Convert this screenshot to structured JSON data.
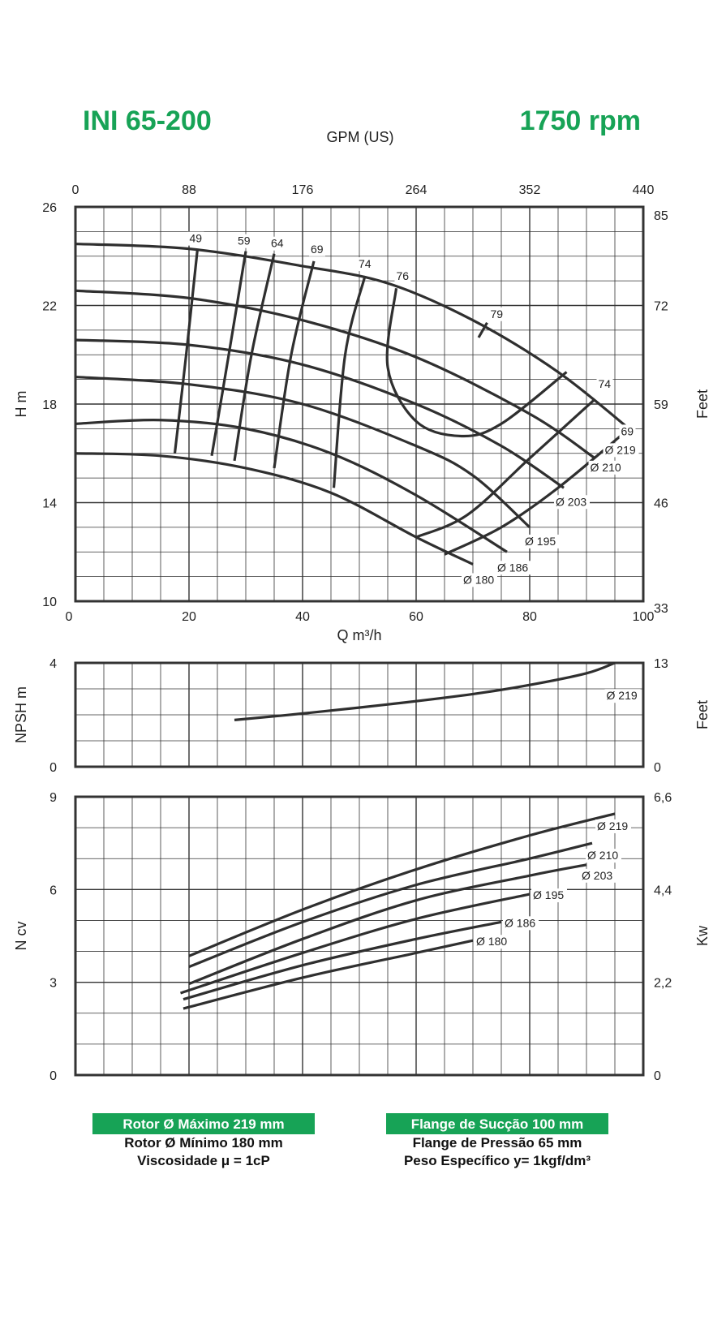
{
  "header": {
    "model": "INI 65-200",
    "speed": "1750 rpm",
    "gpm_label": "GPM (US)"
  },
  "chart_data": [
    {
      "type": "line",
      "name_id": "head",
      "x_top_ticks": [
        "0",
        "88",
        "176",
        "264",
        "352",
        "440"
      ],
      "x_bottom_ticks": [
        "0",
        "20",
        "40",
        "60",
        "80",
        "100"
      ],
      "xlabel": "Q m³/h",
      "ylabel": "H m",
      "y2label": "Feet",
      "xlim": [
        0,
        100
      ],
      "ylim": [
        10,
        26
      ],
      "y_ticks": [
        "10",
        "14",
        "18",
        "22",
        "26"
      ],
      "y2_ticks": [
        "33",
        "46",
        "59",
        "72",
        "85"
      ],
      "impellers": [
        {
          "label": "Ø 219",
          "points": [
            [
              0,
              24.5
            ],
            [
              20,
              24.3
            ],
            [
              40,
              23.6
            ],
            [
              55,
              22.9
            ],
            [
              70,
              21.4
            ],
            [
              85,
              19.3
            ],
            [
              97.5,
              17.0
            ]
          ]
        },
        {
          "label": "Ø 210",
          "points": [
            [
              0,
              22.6
            ],
            [
              20,
              22.3
            ],
            [
              40,
              21.4
            ],
            [
              60,
              19.9
            ],
            [
              80,
              17.6
            ],
            [
              91.5,
              15.8
            ]
          ]
        },
        {
          "label": "Ø 203",
          "points": [
            [
              0,
              20.6
            ],
            [
              20,
              20.4
            ],
            [
              40,
              19.6
            ],
            [
              60,
              18.0
            ],
            [
              75,
              16.3
            ],
            [
              86,
              14.6
            ]
          ]
        },
        {
          "label": "Ø 195",
          "points": [
            [
              0,
              19.1
            ],
            [
              20,
              18.8
            ],
            [
              40,
              18.0
            ],
            [
              60,
              16.3
            ],
            [
              70,
              15.1
            ],
            [
              80,
              13.0
            ]
          ]
        },
        {
          "label": "Ø 186",
          "points": [
            [
              0,
              17.2
            ],
            [
              15,
              17.35
            ],
            [
              30,
              17.0
            ],
            [
              45,
              16.0
            ],
            [
              60,
              14.3
            ],
            [
              76,
              12.0
            ]
          ]
        },
        {
          "label": "Ø 180",
          "points": [
            [
              0,
              16.0
            ],
            [
              15,
              15.9
            ],
            [
              30,
              15.4
            ],
            [
              45,
              14.4
            ],
            [
              60,
              12.6
            ],
            [
              70,
              11.5
            ]
          ]
        }
      ],
      "efficiency_lines": [
        {
          "label": "49",
          "points": [
            [
              21.5,
              24.3
            ],
            [
              19.5,
              20.0
            ],
            [
              17.5,
              16.0
            ]
          ]
        },
        {
          "label": "59",
          "points": [
            [
              30,
              24.2
            ],
            [
              27,
              20.0
            ],
            [
              24,
              15.9
            ]
          ]
        },
        {
          "label": "64",
          "points": [
            [
              35,
              24.1
            ],
            [
              31,
              20.0
            ],
            [
              28,
              15.7
            ]
          ]
        },
        {
          "label": "69",
          "points": [
            [
              42,
              23.8
            ],
            [
              38,
              20.0
            ],
            [
              35,
              15.4
            ]
          ]
        },
        {
          "label": "74",
          "points": [
            [
              51,
              23.2
            ],
            [
              47.5,
              20.0
            ],
            [
              45.5,
              14.6
            ]
          ]
        },
        {
          "label": "76",
          "points": [
            [
              56.5,
              22.7
            ],
            [
              55,
              19.5
            ],
            [
              60,
              17.3
            ],
            [
              68,
              16.7
            ],
            [
              75,
              17.2
            ],
            [
              86.5,
              19.3
            ]
          ]
        },
        {
          "label": "79",
          "points": [
            [
              72.5,
              21.3
            ],
            [
              71,
              20.7
            ]
          ]
        },
        {
          "label": "74",
          "points": [
            [
              91.5,
              18.2
            ],
            [
              80,
              15.8
            ],
            [
              69,
              13.5
            ],
            [
              60,
              12.6
            ]
          ]
        },
        {
          "label": "69",
          "points": [
            [
              97.5,
              17.0
            ],
            [
              85,
              14.6
            ],
            [
              75,
              13.0
            ],
            [
              65,
              11.9
            ]
          ]
        }
      ],
      "eff_label_positions": "top of each line",
      "grid": true
    },
    {
      "type": "line",
      "name_id": "npsh",
      "ylabel": "NPSH m",
      "y2label": "Feet",
      "ylim": [
        0,
        4
      ],
      "y_ticks": [
        "0",
        "4"
      ],
      "y2_ticks": [
        "0",
        "13"
      ],
      "series": [
        {
          "label": "Ø 219",
          "points": [
            [
              28,
              1.8
            ],
            [
              40,
              2.05
            ],
            [
              55,
              2.4
            ],
            [
              70,
              2.8
            ],
            [
              80,
              3.15
            ],
            [
              90,
              3.6
            ],
            [
              95,
              4.0
            ]
          ]
        }
      ],
      "grid": true
    },
    {
      "type": "line",
      "name_id": "power",
      "ylabel": "N cv",
      "y2label": "Kw",
      "ylim": [
        0,
        9
      ],
      "y_ticks": [
        "0",
        "3",
        "6",
        "9"
      ],
      "y2_ticks": [
        "0",
        "2,2",
        "4,4",
        "6,6"
      ],
      "series": [
        {
          "label": "Ø 219",
          "points": [
            [
              20,
              3.85
            ],
            [
              40,
              5.35
            ],
            [
              60,
              6.65
            ],
            [
              80,
              7.75
            ],
            [
              95,
              8.45
            ]
          ]
        },
        {
          "label": "Ø 210",
          "points": [
            [
              20,
              3.5
            ],
            [
              40,
              4.95
            ],
            [
              60,
              6.15
            ],
            [
              80,
              7.0
            ],
            [
              91,
              7.5
            ]
          ]
        },
        {
          "label": "Ø 203",
          "points": [
            [
              20,
              2.95
            ],
            [
              40,
              4.4
            ],
            [
              60,
              5.65
            ],
            [
              80,
              6.45
            ],
            [
              90,
              6.8
            ]
          ]
        },
        {
          "label": "Ø 195",
          "points": [
            [
              18.5,
              2.65
            ],
            [
              40,
              3.95
            ],
            [
              60,
              5.05
            ],
            [
              80,
              5.85
            ]
          ]
        },
        {
          "label": "Ø 186",
          "points": [
            [
              19,
              2.45
            ],
            [
              40,
              3.55
            ],
            [
              60,
              4.4
            ],
            [
              75,
              4.95
            ]
          ]
        },
        {
          "label": "Ø 180",
          "points": [
            [
              19,
              2.15
            ],
            [
              40,
              3.15
            ],
            [
              60,
              3.95
            ],
            [
              70,
              4.35
            ]
          ]
        }
      ],
      "grid": true
    }
  ],
  "footer": {
    "left": [
      "Rotor Ø Máximo 219 mm",
      "Rotor Ø Mínimo 180 mm",
      "Viscosidade μ = 1cP"
    ],
    "right": [
      "Flange de Sucção 100 mm",
      "Flange de Pressão 65 mm",
      "Peso Específico y= 1kgf/dm³"
    ]
  },
  "colors": {
    "brand_green": "#17a356",
    "curve": "#2f2f2f",
    "grid": "#333333"
  }
}
